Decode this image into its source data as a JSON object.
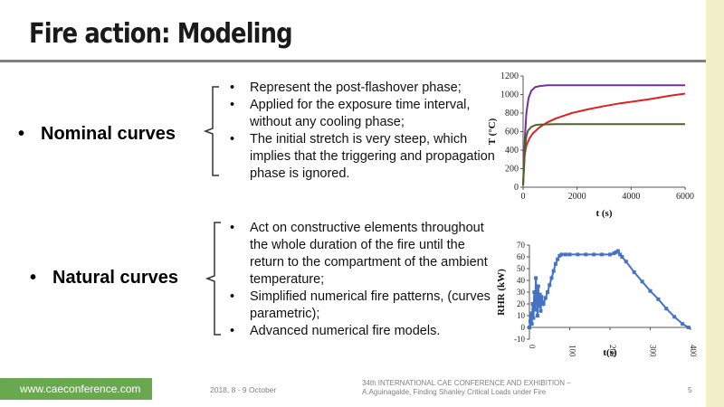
{
  "slide": {
    "title": "Fire action: Modeling",
    "nominal": {
      "label": "Nominal curves",
      "bullet": "•",
      "points": [
        "Represent the post-flashover phase;",
        "Applied for the exposure time interval, without any cooling phase;",
        "The initial stretch is very steep, which implies that the triggering and propagation phase is ignored."
      ]
    },
    "natural": {
      "label": "Natural curves",
      "bullet": "•",
      "points": [
        "Act on constructive elements throughout the whole duration of the fire until the return to the compartment of the ambient temperature;",
        "Simplified numerical fire patterns, (curves parametric);",
        "Advanced numerical fire models."
      ]
    }
  },
  "footer": {
    "url": "www.caeconference.com",
    "date": "2018, 8 - 9 October",
    "conference_line1": "34th INTERNATIONAL CAE CONFERENCE AND EXHIBITION –",
    "conference_line2": "A.Aguinagalde, Finding Shanley Critical Loads under Fire",
    "page": "5"
  },
  "colors": {
    "green": "#6aa84f",
    "title_rule": "#7f7f7f",
    "stripe": "#f2efc9"
  },
  "chart_data": [
    {
      "type": "line",
      "xlabel": "t (s)",
      "ylabel": "T (°C)",
      "xlim": [
        0,
        6000
      ],
      "ylim": [
        0,
        1200
      ],
      "xticks": [
        0,
        2000,
        4000,
        6000
      ],
      "yticks": [
        0,
        200,
        400,
        600,
        800,
        1000,
        1200
      ],
      "series": [
        {
          "color": "#7030a0",
          "x": [
            0,
            60,
            120,
            200,
            300,
            450,
            600,
            900,
            1200,
            2000,
            3000,
            4000,
            5000,
            6000
          ],
          "y": [
            20,
            500,
            800,
            960,
            1040,
            1080,
            1090,
            1100,
            1100,
            1100,
            1100,
            1100,
            1100,
            1100
          ]
        },
        {
          "color": "#e02020",
          "x": [
            0,
            60,
            120,
            240,
            360,
            600,
            900,
            1200,
            1800,
            2400,
            3000,
            3600,
            4200,
            4800,
            5400,
            6000
          ],
          "y": [
            20,
            350,
            450,
            530,
            580,
            645,
            700,
            740,
            800,
            840,
            875,
            905,
            930,
            955,
            985,
            1010
          ]
        },
        {
          "color": "#4f6228",
          "x": [
            0,
            60,
            120,
            180,
            300,
            450,
            600,
            1200,
            2000,
            3000,
            4000,
            5000,
            6000
          ],
          "y": [
            20,
            400,
            550,
            610,
            650,
            670,
            675,
            680,
            680,
            680,
            680,
            680,
            680
          ]
        }
      ]
    },
    {
      "type": "scatter",
      "xlabel": "t(s)",
      "ylabel": "RHR (kW)",
      "xlim": [
        0,
        400
      ],
      "ylim": [
        -10,
        70
      ],
      "xticks": [
        0,
        100,
        200,
        300,
        400
      ],
      "yticks": [
        -10,
        0,
        10,
        20,
        30,
        40,
        50,
        60,
        70
      ],
      "series": [
        {
          "color": "#4472c4",
          "x": [
            0,
            2,
            4,
            6,
            8,
            10,
            12,
            14,
            16,
            18,
            20,
            22,
            24,
            26,
            28,
            30,
            35,
            40,
            45,
            50,
            55,
            60,
            65,
            70,
            75,
            80,
            90,
            100,
            120,
            140,
            160,
            180,
            200,
            210,
            215,
            220,
            225,
            230,
            240,
            260,
            280,
            300,
            320,
            340,
            360,
            380,
            395
          ],
          "y": [
            0,
            5,
            12,
            3,
            20,
            8,
            30,
            15,
            42,
            25,
            10,
            35,
            18,
            28,
            14,
            26,
            20,
            25,
            30,
            36,
            42,
            48,
            54,
            58,
            61,
            62,
            62,
            62,
            62,
            62,
            62,
            62,
            62,
            63,
            64,
            65,
            62,
            60,
            56,
            47,
            39,
            31,
            24,
            16,
            9,
            3,
            0
          ]
        }
      ]
    }
  ]
}
